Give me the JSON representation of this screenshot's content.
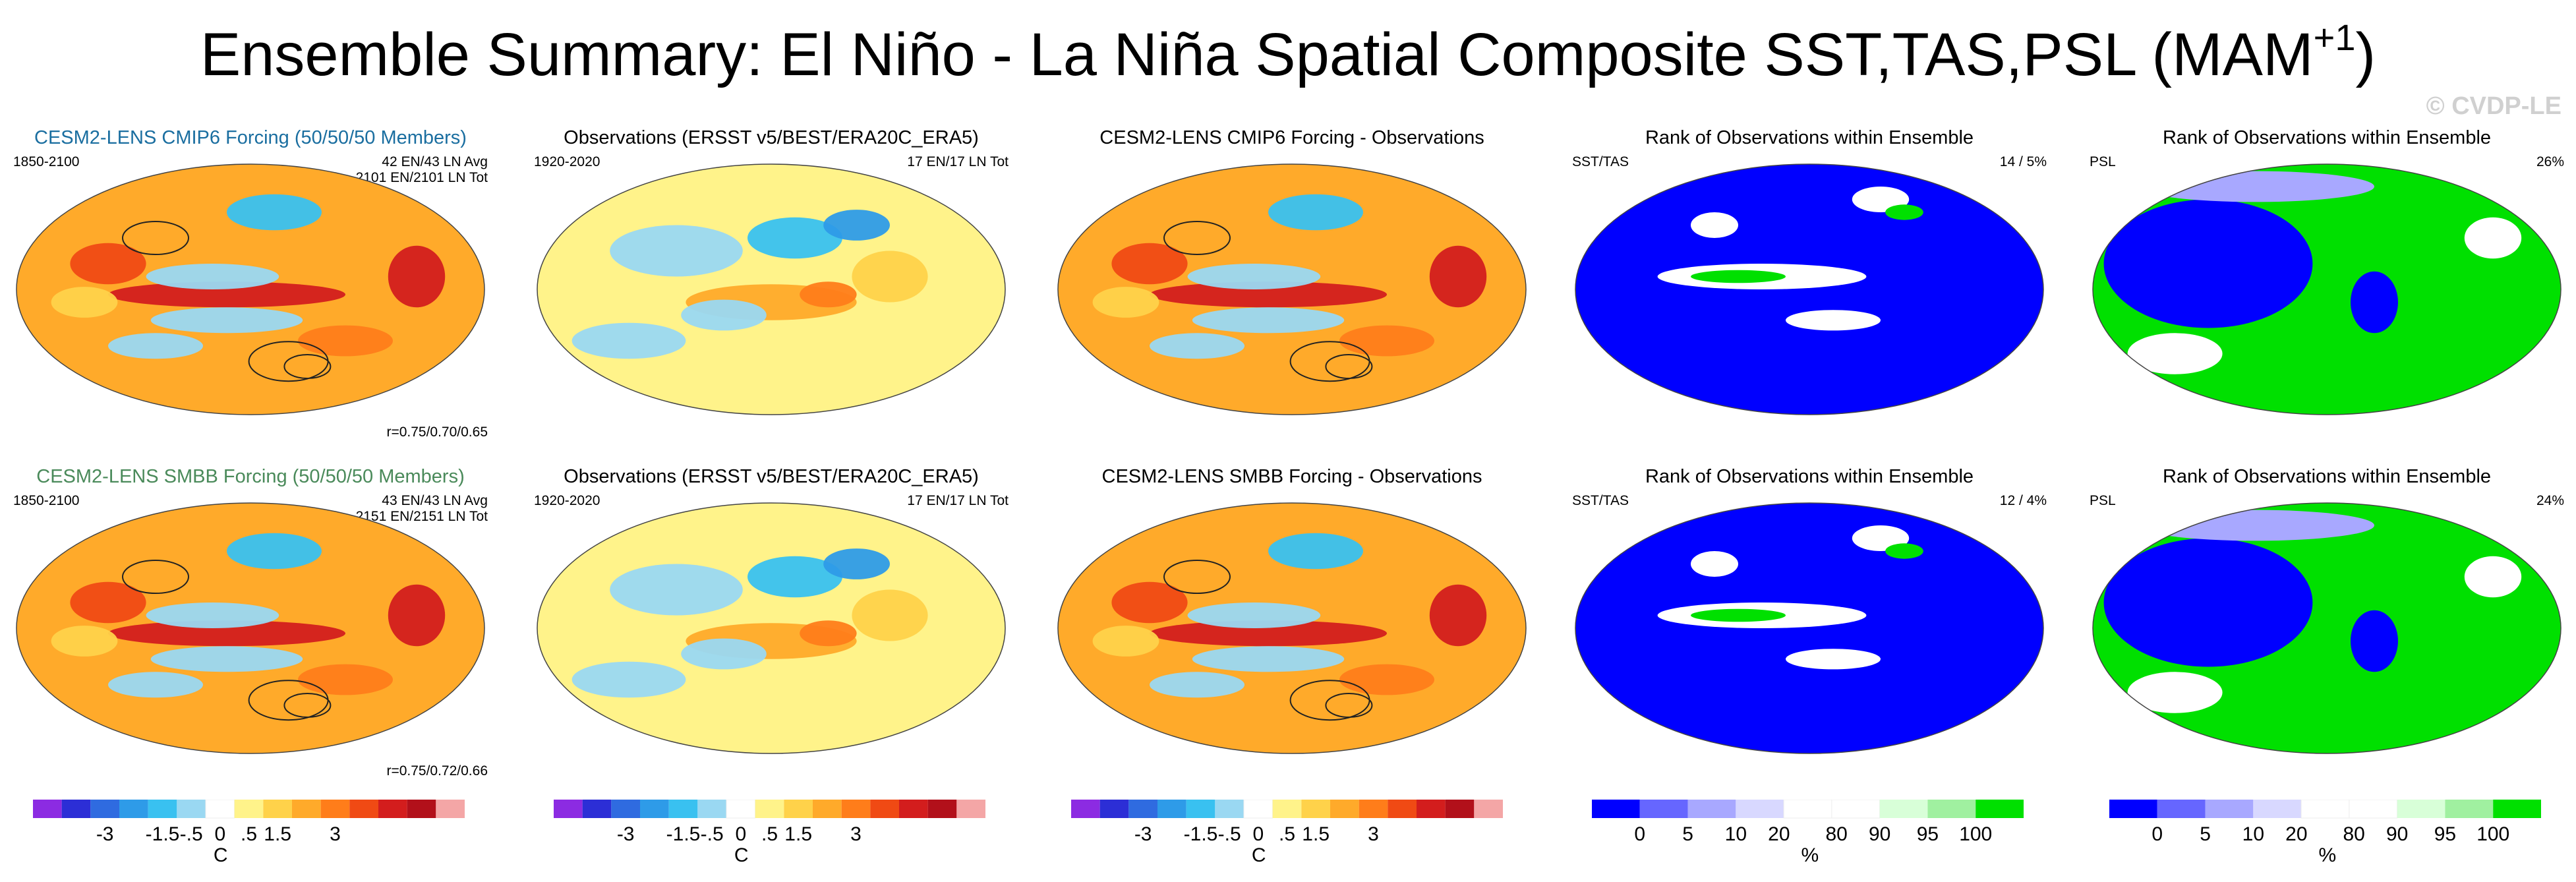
{
  "title": {
    "main": "Ensemble Summary: El Niño - La Niña Spatial Composite SST,TAS,PSL (MAM",
    "sup": "+1",
    "close": ")"
  },
  "watermark": "© CVDP-LE",
  "colors": {
    "diverging": [
      "#8c2be2",
      "#2c2ed6",
      "#2f6be0",
      "#2e9be8",
      "#39c1f0",
      "#9ad8f2",
      "#ffffff",
      "#fff38a",
      "#ffd24a",
      "#ffaa2a",
      "#ff7d1a",
      "#f04a14",
      "#d31d1d",
      "#b2101a",
      "#f4a6a6"
    ],
    "rank": [
      "#0000ff",
      "#6666ff",
      "#a8a8ff",
      "#d8d8ff",
      "#ffffff",
      "#ffffff",
      "#d8ffd8",
      "#a0f0a0",
      "#00e000"
    ]
  },
  "panels": [
    {
      "title": "CESM2-LENS CMIP6 Forcing (50/50/50 Members)",
      "left": "1850-2100",
      "right1": "42 EN/43 LN Avg",
      "right2": "2101 EN/2101 LN Tot",
      "corr": "r=0.75/0.70/0.65"
    },
    {
      "title": "Observations (ERSST v5/BEST/ERA20C_ERA5)",
      "left": "1920-2020",
      "right1": "17 EN/17 LN Tot"
    },
    {
      "title": "CESM2-LENS CMIP6 Forcing - Observations"
    },
    {
      "title": "Rank of Observations within Ensemble",
      "left": "SST/TAS",
      "right1": "14 /   5%"
    },
    {
      "title": "Rank of Observations within Ensemble",
      "left": "PSL",
      "right1": "26%"
    },
    {
      "title": "CESM2-LENS SMBB Forcing (50/50/50 Members)",
      "left": "1850-2100",
      "right1": "43 EN/43 LN Avg",
      "right2": "2151 EN/2151 LN Tot",
      "corr": "r=0.75/0.72/0.66"
    },
    {
      "title": "Observations (ERSST v5/BEST/ERA20C_ERA5)",
      "left": "1920-2020",
      "right1": "17 EN/17 LN Tot"
    },
    {
      "title": "CESM2-LENS SMBB Forcing - Observations"
    },
    {
      "title": "Rank of Observations within Ensemble",
      "left": "SST/TAS",
      "right1": "12 /   4%"
    },
    {
      "title": "Rank of Observations within Ensemble",
      "left": "PSL",
      "right1": "24%"
    }
  ],
  "colorbars": [
    {
      "kind": "div",
      "labels": [
        "-3",
        "-1.5",
        "-.5",
        "0",
        ".5",
        "1.5",
        "3"
      ],
      "unit": "C"
    },
    {
      "kind": "div",
      "labels": [
        "-3",
        "-1.5",
        "-.5",
        "0",
        ".5",
        "1.5",
        "3"
      ],
      "unit": "C"
    },
    {
      "kind": "div",
      "labels": [
        "-3",
        "-1.5",
        "-.5",
        "0",
        ".5",
        "1.5",
        "3"
      ],
      "unit": "C"
    },
    {
      "kind": "rank",
      "labels": [
        "0",
        "5",
        "10",
        "20",
        "80",
        "90",
        "95",
        "100"
      ],
      "unit": "%"
    },
    {
      "kind": "rank",
      "labels": [
        "0",
        "5",
        "10",
        "20",
        "80",
        "90",
        "95",
        "100"
      ],
      "unit": "%"
    }
  ],
  "chart_data": {
    "type": "heatmap",
    "title": "Ensemble Summary: El Niño - La Niña Spatial Composite SST,TAS,PSL (MAM+1)",
    "maps": [
      "CESM2-LENS CMIP6 Forcing (50/50/50 Members)",
      "Observations (ERSST v5/BEST/ERA20C_ERA5)",
      "CESM2-LENS CMIP6 Forcing - Observations",
      "Rank of Observations within Ensemble",
      "Rank of Observations within Ensemble",
      "CESM2-LENS SMBB Forcing (50/50/50 Members)",
      "Observations (ERSST v5/BEST/ERA20C_ERA5)",
      "CESM2-LENS SMBB Forcing - Observations",
      "Rank of Observations within Ensemble",
      "Rank of Observations within Ensemble"
    ],
    "colorbar_temperature_ticks": [
      -3,
      -1.5,
      -0.5,
      0,
      0.5,
      1.5,
      3
    ],
    "colorbar_rank_ticks": [
      0,
      5,
      10,
      20,
      80,
      90,
      95,
      100
    ]
  }
}
